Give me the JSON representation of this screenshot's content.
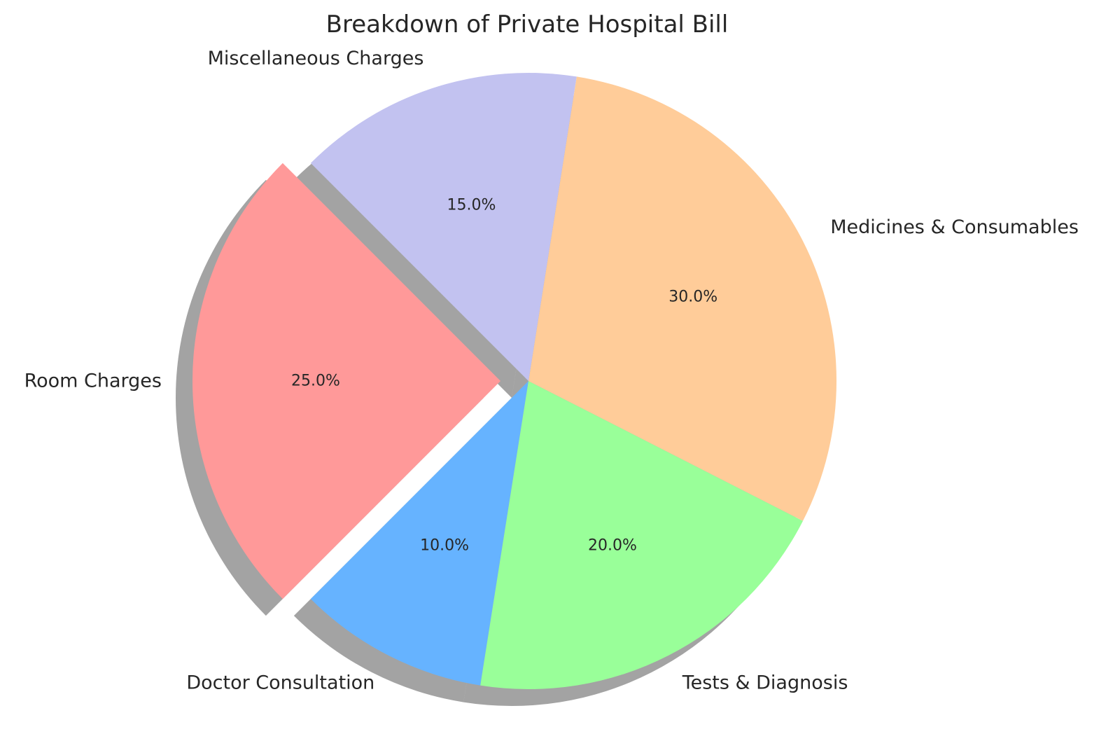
{
  "chart_data": {
    "type": "pie",
    "title": "Breakdown of Private Hospital Bill",
    "categories": [
      "Room Charges",
      "Doctor Consultation",
      "Tests & Diagnosis",
      "Medicines & Consumables",
      "Miscellaneous Charges"
    ],
    "values": [
      25.0,
      10.0,
      20.0,
      30.0,
      15.0
    ],
    "value_labels": [
      "25.0%",
      "10.0%",
      "20.0%",
      "30.0%",
      "15.0%"
    ],
    "colors": [
      "#ff9999",
      "#66b3ff",
      "#99ff99",
      "#ffcc99",
      "#c2c2f0"
    ],
    "exploded": "Room Charges",
    "shadow": true,
    "start_angle_deg": 135,
    "legend": "none"
  }
}
